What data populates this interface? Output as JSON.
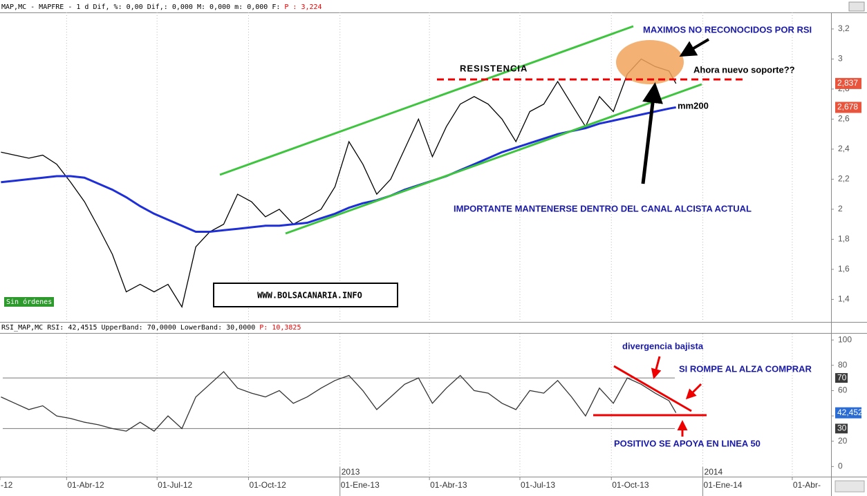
{
  "chart_data": [
    {
      "type": "line",
      "header": "MAP,MC - MAPFRE -  1 d Dif, %: 0,00 Dif,: 0,000 M: 0,000 m: 0,000 F:",
      "header_price": "P : 3,224",
      "x": [
        "2012-01-26",
        "2012-02-09",
        "2012-02-23",
        "2012-03-08",
        "2012-03-22",
        "2012-04-05",
        "2012-04-19",
        "2012-05-03",
        "2012-05-17",
        "2012-05-31",
        "2012-06-14",
        "2012-06-28",
        "2012-07-12",
        "2012-07-26",
        "2012-08-09",
        "2012-08-23",
        "2012-09-06",
        "2012-09-20",
        "2012-10-04",
        "2012-10-18",
        "2012-11-01",
        "2012-11-15",
        "2012-11-29",
        "2012-12-13",
        "2012-12-27",
        "2013-01-10",
        "2013-01-24",
        "2013-02-07",
        "2013-02-21",
        "2013-03-07",
        "2013-03-21",
        "2013-04-04",
        "2013-04-18",
        "2013-05-02",
        "2013-05-16",
        "2013-05-30",
        "2013-06-13",
        "2013-06-27",
        "2013-07-11",
        "2013-07-25",
        "2013-08-08",
        "2013-08-22",
        "2013-09-05",
        "2013-09-19",
        "2013-10-03",
        "2013-10-17",
        "2013-10-31",
        "2013-11-14",
        "2013-11-28",
        "2013-12-05"
      ],
      "xlim": [
        "2012-01-25",
        "2014-05-10"
      ],
      "ylim": [
        1.25,
        3.31
      ],
      "yticks": [
        {
          "value": 3.2,
          "label": "3,2"
        },
        3,
        {
          "value": 2.8,
          "label": "2,8"
        },
        {
          "value": 2.6,
          "label": "2,6"
        },
        {
          "value": 2.4,
          "label": "2,4"
        },
        {
          "value": 2.2,
          "label": "2,2"
        },
        2,
        {
          "value": 1.8,
          "label": "1,8"
        },
        {
          "value": 1.6,
          "label": "1,6"
        },
        {
          "value": 1.4,
          "label": "1,4"
        }
      ],
      "series": [
        {
          "color": "#000000",
          "label_color": "#e8543c",
          "values": [
            2.38,
            2.36,
            2.34,
            2.36,
            2.3,
            2.18,
            2.05,
            1.88,
            1.7,
            1.45,
            1.5,
            1.45,
            1.5,
            1.35,
            1.75,
            1.85,
            1.9,
            2.1,
            2.05,
            1.95,
            2.0,
            1.9,
            1.95,
            2.0,
            2.15,
            2.45,
            2.3,
            2.1,
            2.2,
            2.4,
            2.6,
            2.35,
            2.55,
            2.7,
            2.75,
            2.7,
            2.6,
            2.45,
            2.65,
            2.7,
            2.85,
            2.7,
            2.55,
            2.75,
            2.65,
            2.9,
            3.0,
            2.95,
            2.92,
            2.837
          ],
          "value_labels": [
            null,
            null,
            null,
            null,
            null,
            null,
            null,
            null,
            null,
            null,
            null,
            null,
            null,
            null,
            null,
            null,
            null,
            null,
            null,
            null,
            null,
            null,
            null,
            null,
            null,
            null,
            null,
            null,
            null,
            null,
            null,
            null,
            null,
            null,
            null,
            null,
            null,
            null,
            null,
            null,
            null,
            null,
            null,
            null,
            null,
            null,
            null,
            null,
            null,
            "2,837"
          ]
        },
        {
          "color": "#1f2fd6",
          "label_color": "#e8543c",
          "values": [
            2.18,
            2.19,
            2.2,
            2.21,
            2.22,
            2.22,
            2.21,
            2.17,
            2.13,
            2.08,
            2.02,
            1.97,
            1.93,
            1.89,
            1.85,
            1.85,
            1.86,
            1.87,
            1.88,
            1.89,
            1.89,
            1.9,
            1.91,
            1.94,
            1.97,
            2.01,
            2.04,
            2.06,
            2.09,
            2.13,
            2.16,
            2.19,
            2.22,
            2.26,
            2.3,
            2.34,
            2.38,
            2.41,
            2.44,
            2.47,
            2.5,
            2.52,
            2.54,
            2.57,
            2.59,
            2.61,
            2.63,
            2.65,
            2.67,
            2.678
          ],
          "value_labels": [
            null,
            null,
            null,
            null,
            null,
            null,
            null,
            null,
            null,
            null,
            null,
            null,
            null,
            null,
            null,
            null,
            null,
            null,
            null,
            null,
            null,
            null,
            null,
            null,
            null,
            null,
            null,
            null,
            null,
            null,
            null,
            null,
            null,
            null,
            null,
            null,
            null,
            null,
            null,
            null,
            null,
            null,
            null,
            null,
            null,
            null,
            null,
            null,
            null,
            "2,678"
          ]
        }
      ],
      "annotations": [
        "MAXIMOS NO RECONOCIDOS POR RSI",
        "RESISTENCIA",
        "Ahora nuevo soporte??",
        "mm200",
        "IMPORTANTE MANTENERSE DENTRO DEL CANAL ALCISTA ACTUAL",
        "WWW.BOLSACANARIA.INFO",
        "Sin órdenes"
      ]
    },
    {
      "type": "line",
      "header": "RSI_MAP,MC RSI: 42,4515 UpperBand: 70,0000 LowerBand: 30,0000",
      "header_price": "P: 10,3825",
      "x": [
        "2012-01-26",
        "2012-02-09",
        "2012-02-23",
        "2012-03-08",
        "2012-03-22",
        "2012-04-05",
        "2012-04-19",
        "2012-05-03",
        "2012-05-17",
        "2012-05-31",
        "2012-06-14",
        "2012-06-28",
        "2012-07-12",
        "2012-07-26",
        "2012-08-09",
        "2012-08-23",
        "2012-09-06",
        "2012-09-20",
        "2012-10-04",
        "2012-10-18",
        "2012-11-01",
        "2012-11-15",
        "2012-11-29",
        "2012-12-13",
        "2012-12-27",
        "2013-01-10",
        "2013-01-24",
        "2013-02-07",
        "2013-02-21",
        "2013-03-07",
        "2013-03-21",
        "2013-04-04",
        "2013-04-18",
        "2013-05-02",
        "2013-05-16",
        "2013-05-30",
        "2013-06-13",
        "2013-06-27",
        "2013-07-11",
        "2013-07-25",
        "2013-08-08",
        "2013-08-22",
        "2013-09-05",
        "2013-09-19",
        "2013-10-03",
        "2013-10-17",
        "2013-10-31",
        "2013-11-14",
        "2013-11-28",
        "2013-12-05"
      ],
      "xlim": [
        "2012-01-25",
        "2014-05-10"
      ],
      "xticks": [
        {
          "value": "2012-01-01",
          "label": "-12"
        },
        {
          "value": "2012-04-01",
          "label": "01-Abr-12"
        },
        {
          "value": "2012-07-01",
          "label": "01-Jul-12"
        },
        {
          "value": "2012-10-01",
          "label": "01-Oct-12"
        },
        {
          "value": "2013-01-01",
          "label": "01-Ene-13"
        },
        {
          "value": "2013-04-01",
          "label": "01-Abr-13"
        },
        {
          "value": "2013-07-01",
          "label": "01-Jul-13"
        },
        {
          "value": "2013-10-01",
          "label": "01-Oct-13"
        },
        {
          "value": "2014-01-01",
          "label": "01-Ene-14"
        },
        {
          "value": "2014-04-01",
          "label": "01-Abr-"
        }
      ],
      "year_ticks": [
        {
          "value": "2013-01-01",
          "label": "2013"
        },
        {
          "value": "2014-01-01",
          "label": "2014"
        }
      ],
      "ylim": [
        -8,
        105
      ],
      "yticks": [
        100,
        80,
        60,
        40,
        20,
        0
      ],
      "bands": [
        70,
        30
      ],
      "series": [
        {
          "color": "#333333",
          "label_color": "#2b6cd4",
          "values": [
            55,
            50,
            45,
            48,
            40,
            38,
            35,
            33,
            30,
            28,
            35,
            28,
            40,
            30,
            55,
            65,
            75,
            62,
            58,
            55,
            60,
            50,
            55,
            62,
            68,
            72,
            60,
            45,
            55,
            65,
            70,
            50,
            62,
            72,
            60,
            58,
            50,
            45,
            60,
            58,
            68,
            55,
            40,
            62,
            50,
            70,
            65,
            58,
            52,
            42.452
          ],
          "value_labels": [
            null,
            null,
            null,
            null,
            null,
            null,
            null,
            null,
            null,
            null,
            null,
            null,
            null,
            null,
            null,
            null,
            null,
            null,
            null,
            null,
            null,
            null,
            null,
            null,
            null,
            null,
            null,
            null,
            null,
            null,
            null,
            null,
            null,
            null,
            null,
            null,
            null,
            null,
            null,
            null,
            null,
            null,
            null,
            null,
            null,
            null,
            null,
            null,
            null,
            "42,452"
          ]
        }
      ],
      "annotations": [
        "divergencia bajista",
        "SI ROMPE AL ALZA COMPRAR",
        "POSITIVO SE APOYA EN LINEA 50"
      ]
    }
  ]
}
